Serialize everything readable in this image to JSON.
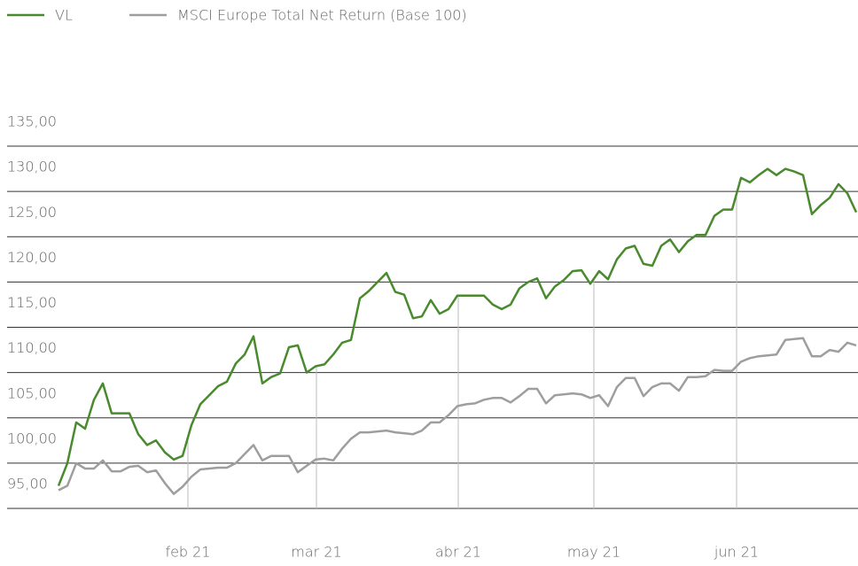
{
  "chart_data": {
    "type": "line",
    "series": [
      {
        "name": "VL",
        "color": "#4a8a2e",
        "values": [
          97.5,
          100.0,
          104.5,
          103.8,
          107.0,
          108.8,
          105.5,
          105.5,
          105.5,
          103.2,
          102.0,
          102.5,
          101.2,
          100.4,
          100.8,
          104.2,
          106.5,
          107.5,
          108.5,
          109.0,
          111.0,
          112.0,
          114.0,
          108.8,
          109.5,
          109.9,
          112.8,
          113.0,
          110.0,
          110.7,
          110.9,
          112.0,
          113.3,
          113.6,
          118.2,
          119.0,
          120.0,
          121.0,
          118.9,
          118.6,
          116.0,
          116.2,
          118.0,
          116.5,
          117.0,
          118.5,
          118.5,
          118.5,
          118.5,
          117.5,
          117.0,
          117.5,
          119.3,
          120.0,
          120.4,
          118.2,
          119.5,
          120.2,
          121.2,
          121.3,
          119.8,
          121.2,
          120.3,
          122.5,
          123.7,
          124.0,
          122.0,
          121.8,
          124.0,
          124.7,
          123.3,
          124.5,
          125.2,
          125.2,
          127.3,
          128.0,
          128.0,
          131.5,
          131.0,
          131.8,
          132.5,
          131.8,
          132.5,
          132.2,
          131.8,
          127.5,
          128.5,
          129.3,
          130.8,
          129.8,
          127.7
        ]
      },
      {
        "name": "MSCI Europe Total Net Return (Base 100)",
        "color": "#9e9e9e",
        "values": [
          97.0,
          97.5,
          100.0,
          99.4,
          99.4,
          100.3,
          99.1,
          99.1,
          99.6,
          99.7,
          99.0,
          99.2,
          97.8,
          96.6,
          97.4,
          98.5,
          99.3,
          99.4,
          99.5,
          99.5,
          100.0,
          101.0,
          102.0,
          100.3,
          100.8,
          100.8,
          100.8,
          99.0,
          99.7,
          100.4,
          100.5,
          100.3,
          101.6,
          102.7,
          103.4,
          103.4,
          103.5,
          103.6,
          103.4,
          103.3,
          103.2,
          103.6,
          104.5,
          104.5,
          105.3,
          106.3,
          106.5,
          106.6,
          107.0,
          107.2,
          107.2,
          106.7,
          107.4,
          108.2,
          108.2,
          106.6,
          107.5,
          107.6,
          107.7,
          107.6,
          107.2,
          107.5,
          106.3,
          108.4,
          109.4,
          109.4,
          107.4,
          108.4,
          108.8,
          108.8,
          108.0,
          109.5,
          109.5,
          109.6,
          110.3,
          110.2,
          110.2,
          111.2,
          111.6,
          111.8,
          111.9,
          112.0,
          113.6,
          113.7,
          113.8,
          111.8,
          111.8,
          112.5,
          112.3,
          113.3,
          113.0
        ]
      }
    ],
    "xlim": [
      -5.8,
      90.2
    ],
    "xticks": [
      {
        "value": 14.6,
        "label": "feb 21"
      },
      {
        "value": 29.1,
        "label": "mar 21"
      },
      {
        "value": 45.1,
        "label": "abr 21"
      },
      {
        "value": 60.4,
        "label": "may 21"
      },
      {
        "value": 76.5,
        "label": "jun 21"
      }
    ],
    "ylim": [
      95,
      135
    ],
    "yticks": [
      {
        "value": 135,
        "label": "135,00"
      },
      {
        "value": 130,
        "label": "130,00"
      },
      {
        "value": 125,
        "label": "125,00"
      },
      {
        "value": 120,
        "label": "120,00"
      },
      {
        "value": 115,
        "label": "115,00"
      },
      {
        "value": 110,
        "label": "110,00"
      },
      {
        "value": 105,
        "label": "105,00"
      },
      {
        "value": 100,
        "label": "100,00"
      },
      {
        "value": 95,
        "label": "95,00"
      }
    ],
    "grid": true,
    "legend": "top-left"
  }
}
